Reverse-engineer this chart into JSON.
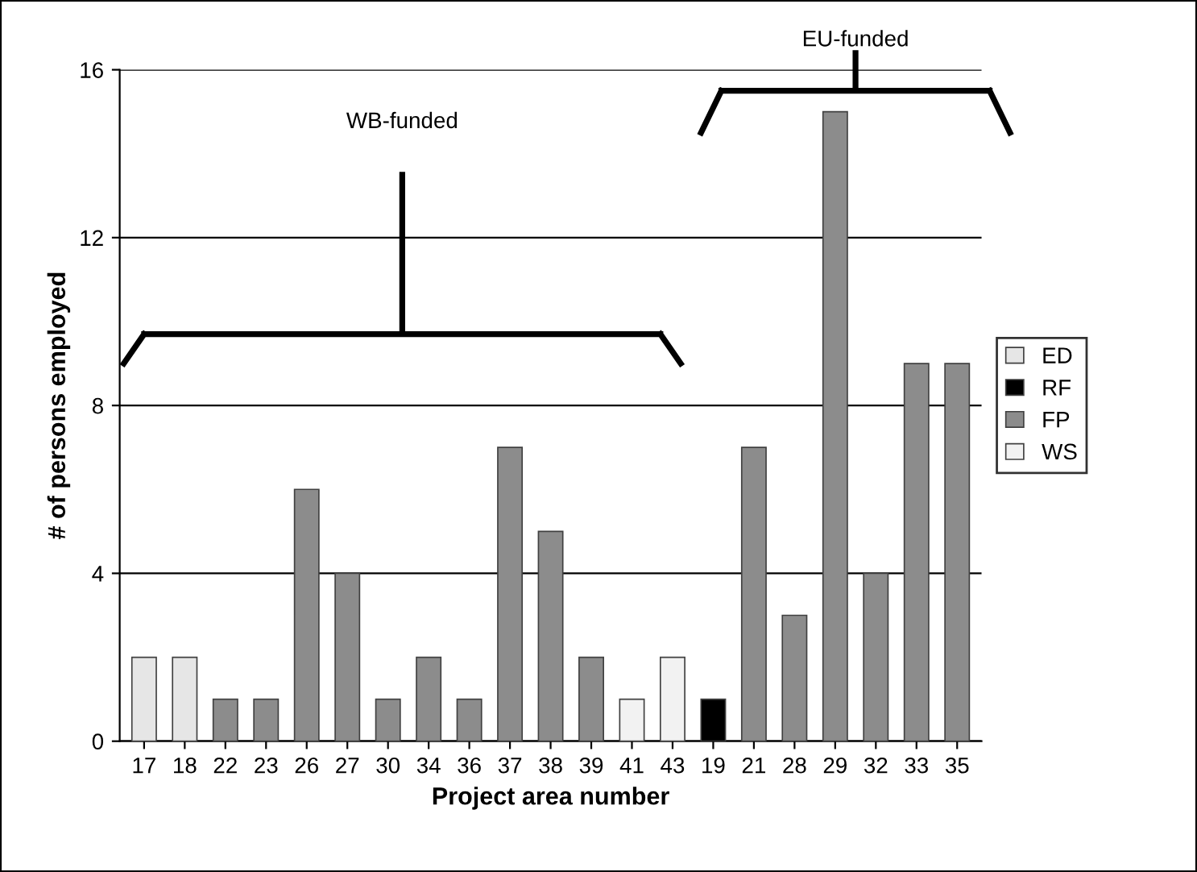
{
  "chart_data": {
    "type": "bar",
    "xlabel": "Project area number",
    "ylabel": "# of persons employed",
    "categories": [
      "17",
      "18",
      "22",
      "23",
      "26",
      "27",
      "30",
      "34",
      "36",
      "37",
      "38",
      "39",
      "41",
      "43",
      "19",
      "21",
      "28",
      "29",
      "32",
      "33",
      "35"
    ],
    "series": [
      {
        "name": "ED",
        "color": "#e6e6e6",
        "values": [
          2,
          2,
          null,
          null,
          null,
          null,
          null,
          null,
          null,
          null,
          null,
          null,
          null,
          null,
          null,
          null,
          null,
          null,
          null,
          null,
          null
        ]
      },
      {
        "name": "RF",
        "color": "#000000",
        "values": [
          null,
          null,
          null,
          null,
          null,
          null,
          null,
          null,
          null,
          null,
          null,
          null,
          null,
          null,
          1,
          null,
          null,
          null,
          null,
          null,
          null
        ]
      },
      {
        "name": "FP",
        "color": "#8c8c8c",
        "values": [
          null,
          null,
          1,
          1,
          6,
          4,
          1,
          2,
          1,
          7,
          5,
          2,
          null,
          null,
          null,
          7,
          3,
          15,
          4,
          9,
          9
        ]
      },
      {
        "name": "WS",
        "color": "#f2f2f2",
        "values": [
          null,
          null,
          null,
          null,
          null,
          null,
          null,
          null,
          null,
          null,
          null,
          null,
          1,
          2,
          null,
          null,
          null,
          null,
          null,
          null,
          null
        ]
      }
    ],
    "ylim": [
      0,
      16
    ],
    "yticks": [
      0,
      4,
      8,
      12,
      16
    ],
    "grid": "y",
    "legend": "right",
    "annotations": [
      "WB-funded",
      "EU-funded"
    ]
  }
}
